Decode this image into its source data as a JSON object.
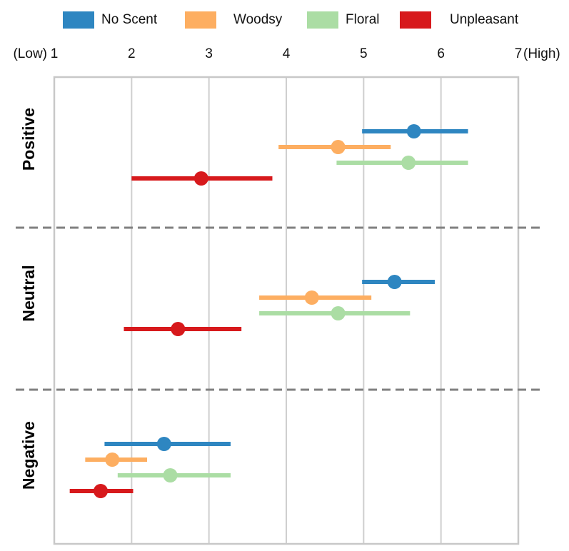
{
  "chart_data": {
    "type": "dot-plot-with-error-bars",
    "title": "",
    "xlim": [
      1,
      7
    ],
    "x_ticks": [
      "1",
      "2",
      "3",
      "4",
      "5",
      "6",
      "7"
    ],
    "x_low_label": "(Low)",
    "x_high_label": "(High)",
    "groups": [
      "Positive",
      "Neutral",
      "Negative"
    ],
    "series": [
      {
        "name": "No Scent",
        "color": "#2e86c1",
        "points": [
          {
            "group": "Positive",
            "mean": 5.65,
            "low": 4.98,
            "high": 6.35
          },
          {
            "group": "Neutral",
            "mean": 5.4,
            "low": 4.98,
            "high": 5.92
          },
          {
            "group": "Negative",
            "mean": 2.42,
            "low": 1.65,
            "high": 3.28
          }
        ]
      },
      {
        "name": "Woodsy",
        "color": "#fdae61",
        "points": [
          {
            "group": "Positive",
            "mean": 4.67,
            "low": 3.9,
            "high": 5.35
          },
          {
            "group": "Neutral",
            "mean": 4.33,
            "low": 3.65,
            "high": 5.1
          },
          {
            "group": "Negative",
            "mean": 1.75,
            "low": 1.4,
            "high": 2.2
          }
        ]
      },
      {
        "name": "Floral",
        "color": "#abdda4",
        "points": [
          {
            "group": "Positive",
            "mean": 5.58,
            "low": 4.65,
            "high": 6.35
          },
          {
            "group": "Neutral",
            "mean": 4.67,
            "low": 3.65,
            "high": 5.6
          },
          {
            "group": "Negative",
            "mean": 2.5,
            "low": 1.82,
            "high": 3.28
          }
        ]
      },
      {
        "name": "Unpleasant",
        "color": "#d7191c",
        "points": [
          {
            "group": "Positive",
            "mean": 2.9,
            "low": 2.0,
            "high": 3.82
          },
          {
            "group": "Neutral",
            "mean": 2.6,
            "low": 1.9,
            "high": 3.42
          },
          {
            "group": "Negative",
            "mean": 1.6,
            "low": 1.2,
            "high": 2.02
          }
        ]
      }
    ],
    "grid": true,
    "legend": "top"
  }
}
